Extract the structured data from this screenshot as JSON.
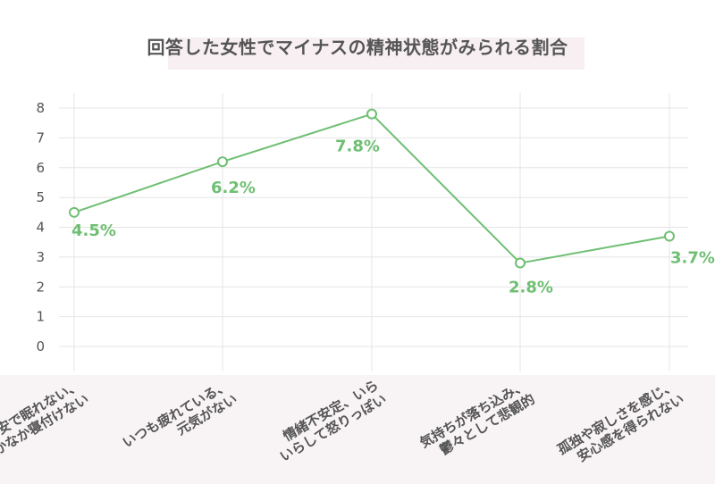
{
  "chart_data": {
    "type": "line",
    "title": "回答した女性でマイナスの精神状態がみられる割合",
    "categories": [
      [
        "不安で眠れない、",
        "なかなか寝付けない"
      ],
      [
        "いつも疲れている、",
        "元気がない"
      ],
      [
        "情緒不安定、いら",
        "いらして怒りっぽい"
      ],
      [
        "気持ちが落ち込み、",
        "鬱々として悲観的"
      ],
      [
        "孤独や寂しさを感じ、",
        "安心感を得られない"
      ]
    ],
    "values": [
      4.5,
      6.2,
      7.8,
      2.8,
      3.7
    ],
    "data_labels": [
      "4.5%",
      "6.2%",
      "7.8%",
      "2.8%",
      "3.7%"
    ],
    "y_ticks": [
      "0",
      "1",
      "2",
      "3",
      "4",
      "5",
      "6",
      "7",
      "8"
    ],
    "ylim": [
      0,
      8
    ],
    "grid": true,
    "line_color": "#6fbf73",
    "title_band_color": "#f7eff1"
  }
}
